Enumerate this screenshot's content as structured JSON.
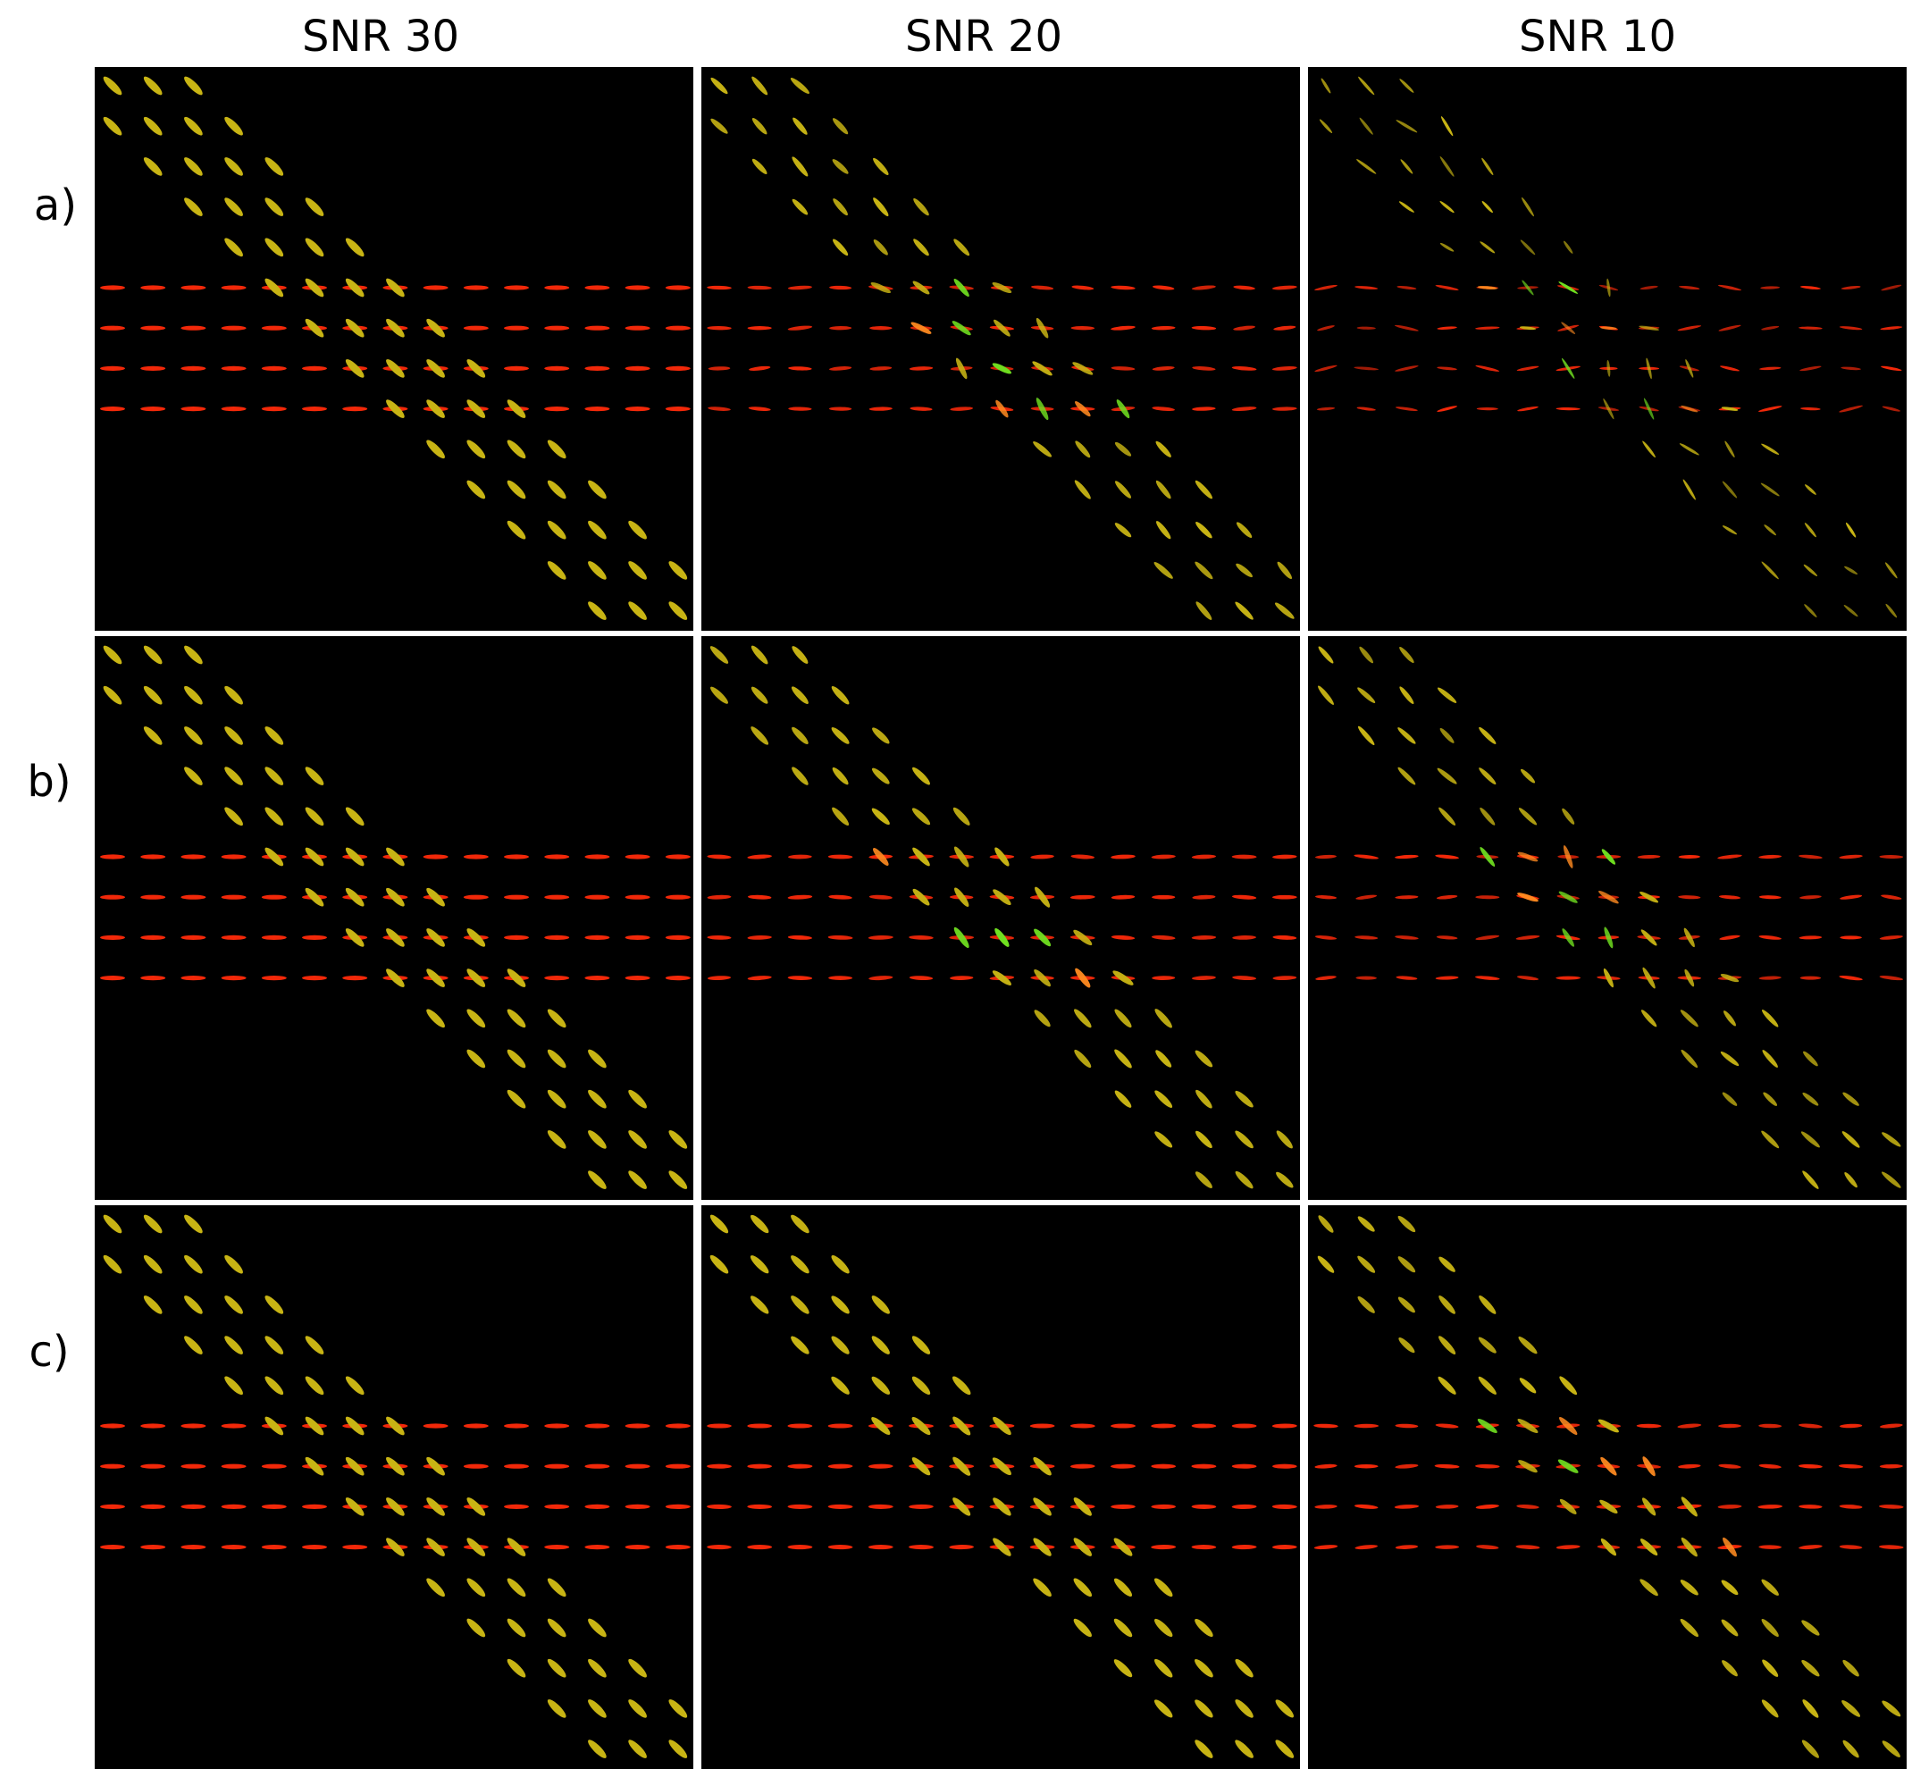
{
  "columns": [
    "SNR 30",
    "SNR 20",
    "SNR 10"
  ],
  "rows": [
    "a)",
    "b)",
    "c)"
  ]
}
